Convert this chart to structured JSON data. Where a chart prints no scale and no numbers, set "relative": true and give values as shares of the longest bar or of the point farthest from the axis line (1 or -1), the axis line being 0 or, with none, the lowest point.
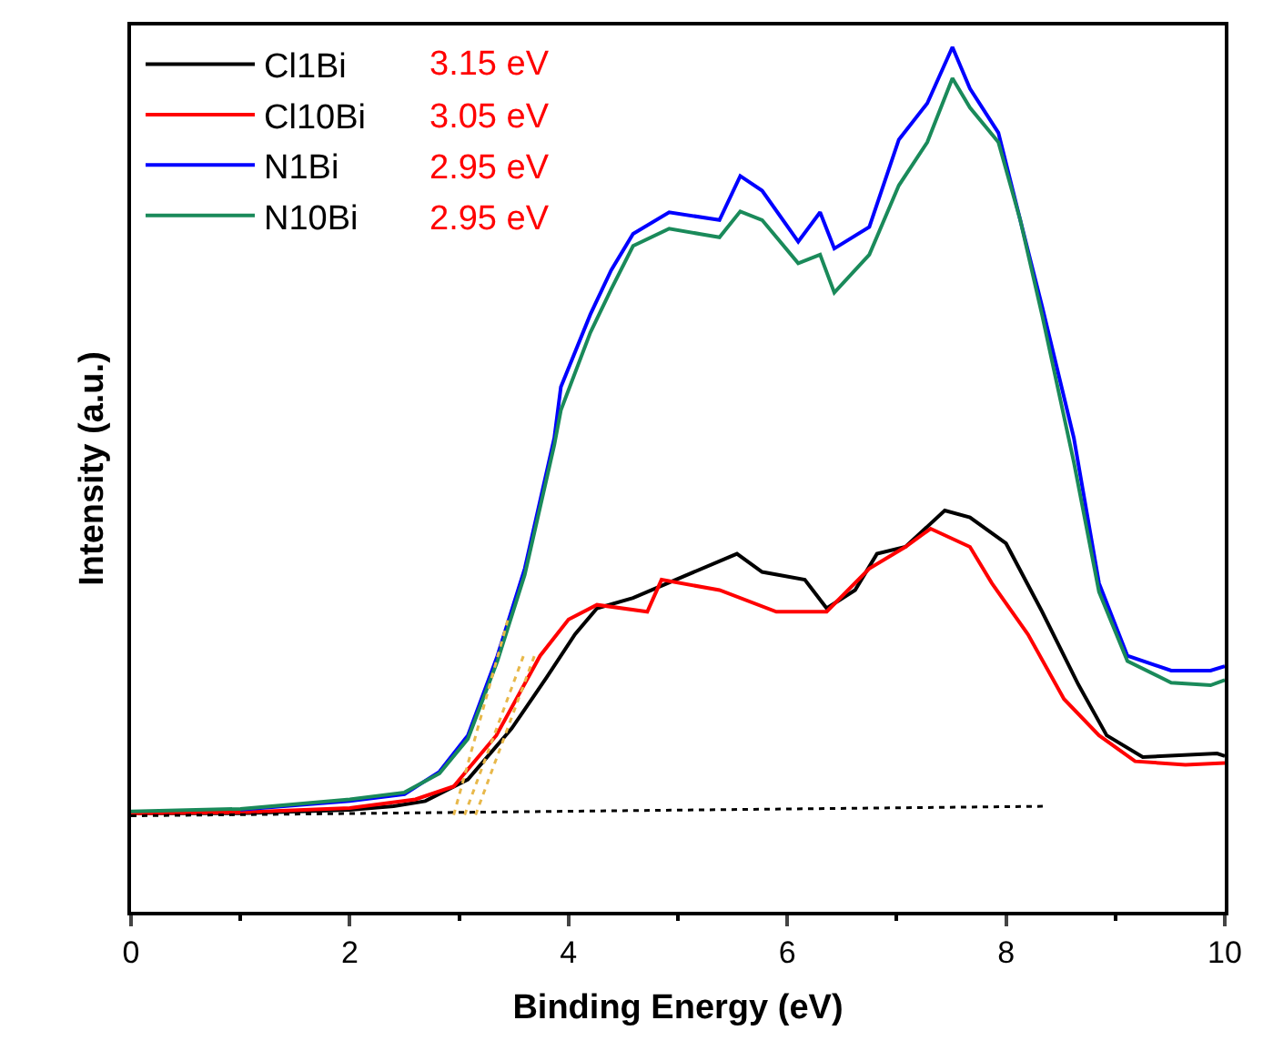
{
  "chart_data": {
    "type": "line",
    "relative": true,
    "xlabel": "Binding Energy (eV)",
    "ylabel": "Intensity (a.u.)",
    "xlim": [
      0,
      10
    ],
    "xticks": [
      0,
      2,
      4,
      6,
      8,
      10
    ],
    "legend": "top left",
    "marker": "none",
    "annotations": [
      "3.15 eV",
      "3.05 eV",
      "2.95 eV",
      "2.95 eV"
    ],
    "series": [
      {
        "name": "Cl1Bi",
        "color": "#000000",
        "x": [
          0,
          1,
          2,
          2.4,
          2.69,
          3.08,
          3.48,
          3.8,
          4.06,
          4.26,
          4.59,
          4.98,
          5.54,
          5.77,
          6.16,
          6.36,
          6.62,
          6.82,
          7.08,
          7.44,
          7.67,
          8.0,
          8.33,
          8.66,
          8.92,
          9.25,
          9.93,
          10
        ],
        "values": [
          0.114,
          0.114,
          0.118,
          0.122,
          0.128,
          0.153,
          0.212,
          0.271,
          0.321,
          0.351,
          0.363,
          0.384,
          0.414,
          0.393,
          0.384,
          0.351,
          0.372,
          0.414,
          0.422,
          0.464,
          0.456,
          0.426,
          0.347,
          0.263,
          0.204,
          0.179,
          0.183,
          0.18
        ]
      },
      {
        "name": "Cl10Bi",
        "color": "#ff0000",
        "x": [
          0,
          1,
          2,
          2.6,
          2.95,
          3.34,
          3.74,
          4.0,
          4.26,
          4.72,
          4.85,
          5.38,
          5.9,
          6.36,
          6.75,
          7.08,
          7.31,
          7.67,
          7.87,
          8.2,
          8.53,
          8.85,
          9.18,
          9.64,
          10
        ],
        "values": [
          0.114,
          0.115,
          0.12,
          0.13,
          0.145,
          0.204,
          0.296,
          0.338,
          0.355,
          0.347,
          0.384,
          0.372,
          0.347,
          0.347,
          0.397,
          0.422,
          0.443,
          0.422,
          0.38,
          0.321,
          0.246,
          0.204,
          0.174,
          0.17,
          0.172
        ]
      },
      {
        "name": "N1Bi",
        "color": "#0000ff",
        "x": [
          1,
          2,
          2.5,
          2.82,
          3.08,
          3.35,
          3.6,
          3.87,
          3.93,
          4.2,
          4.39,
          4.59,
          4.92,
          5.38,
          5.57,
          5.77,
          6.1,
          6.3,
          6.43,
          6.75,
          7.02,
          7.28,
          7.51,
          7.67,
          7.93,
          8.13,
          8.33,
          8.62,
          8.85,
          9.11,
          9.51,
          9.87,
          10
        ],
        "values": [
          0.118,
          0.128,
          0.136,
          0.162,
          0.204,
          0.296,
          0.397,
          0.548,
          0.607,
          0.691,
          0.742,
          0.784,
          0.809,
          0.8,
          0.851,
          0.834,
          0.775,
          0.809,
          0.767,
          0.792,
          0.893,
          0.935,
          1.0,
          0.952,
          0.901,
          0.8,
          0.7,
          0.548,
          0.38,
          0.296,
          0.279,
          0.279,
          0.284
        ]
      },
      {
        "name": "N10Bi",
        "color": "#1a8a5a",
        "x": [
          0,
          1,
          2,
          2.5,
          2.82,
          3.08,
          3.35,
          3.6,
          3.87,
          3.93,
          4.2,
          4.39,
          4.59,
          4.92,
          5.38,
          5.57,
          5.77,
          6.1,
          6.3,
          6.43,
          6.75,
          7.02,
          7.28,
          7.51,
          7.67,
          7.93,
          8.13,
          8.33,
          8.62,
          8.85,
          9.11,
          9.51,
          9.87,
          10
        ],
        "values": [
          0.116,
          0.119,
          0.13,
          0.138,
          0.16,
          0.2,
          0.29,
          0.39,
          0.54,
          0.58,
          0.67,
          0.72,
          0.77,
          0.79,
          0.78,
          0.81,
          0.8,
          0.75,
          0.76,
          0.716,
          0.76,
          0.84,
          0.89,
          0.964,
          0.93,
          0.89,
          0.8,
          0.69,
          0.52,
          0.37,
          0.29,
          0.265,
          0.262,
          0.268
        ]
      },
      {
        "color": "#000000",
        "line_style": "dotted",
        "x": [
          0,
          8.35
        ],
        "values": [
          0.111,
          0.122
        ]
      },
      {
        "color": "#e8b84a",
        "line_style": "dotted",
        "x": [
          3.15,
          3.7
        ],
        "values": [
          0.112,
          0.3
        ]
      },
      {
        "color": "#e8b84a",
        "line_style": "dotted",
        "x": [
          3.05,
          3.6
        ],
        "values": [
          0.112,
          0.3
        ]
      },
      {
        "color": "#e8b84a",
        "line_style": "dotted",
        "x": [
          2.95,
          3.45
        ],
        "values": [
          0.112,
          0.34
        ]
      }
    ]
  }
}
